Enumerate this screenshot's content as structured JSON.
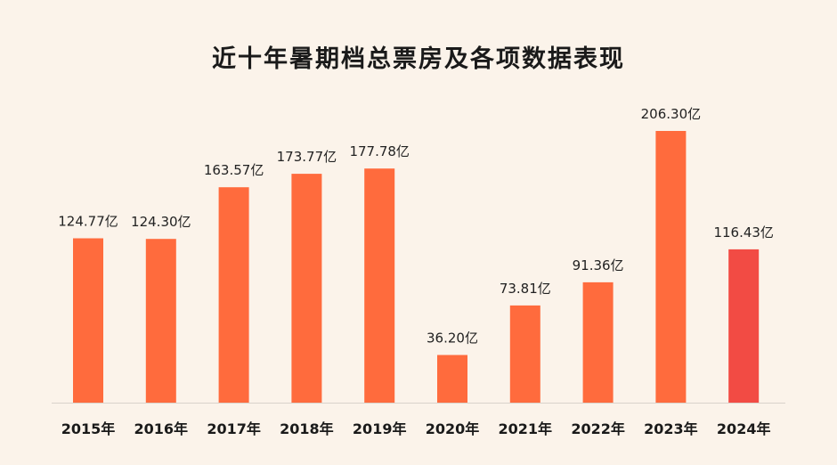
{
  "chart_data": {
    "type": "bar",
    "title": "近十年暑期档总票房及各项数据表现",
    "categories": [
      "2015年",
      "2016年",
      "2017年",
      "2018年",
      "2019年",
      "2020年",
      "2021年",
      "2022年",
      "2023年",
      "2024年"
    ],
    "values": [
      124.77,
      124.3,
      163.57,
      173.77,
      177.78,
      36.2,
      73.81,
      91.36,
      206.3,
      116.43
    ],
    "value_labels": [
      "124.77亿",
      "124.30亿",
      "163.57亿",
      "173.77亿",
      "177.78亿",
      "36.20亿",
      "73.81亿",
      "91.36亿",
      "206.30亿",
      "116.43亿"
    ],
    "xlabel": "",
    "ylabel": "",
    "ylim": [
      0,
      220
    ],
    "grid": false,
    "legend": "none",
    "colors": {
      "bar": "#ff6b3d",
      "highlight_bar": "#f24b44",
      "baseline": "#d9d2ca",
      "background": "#fbf3ea"
    },
    "highlight_index": 9
  }
}
